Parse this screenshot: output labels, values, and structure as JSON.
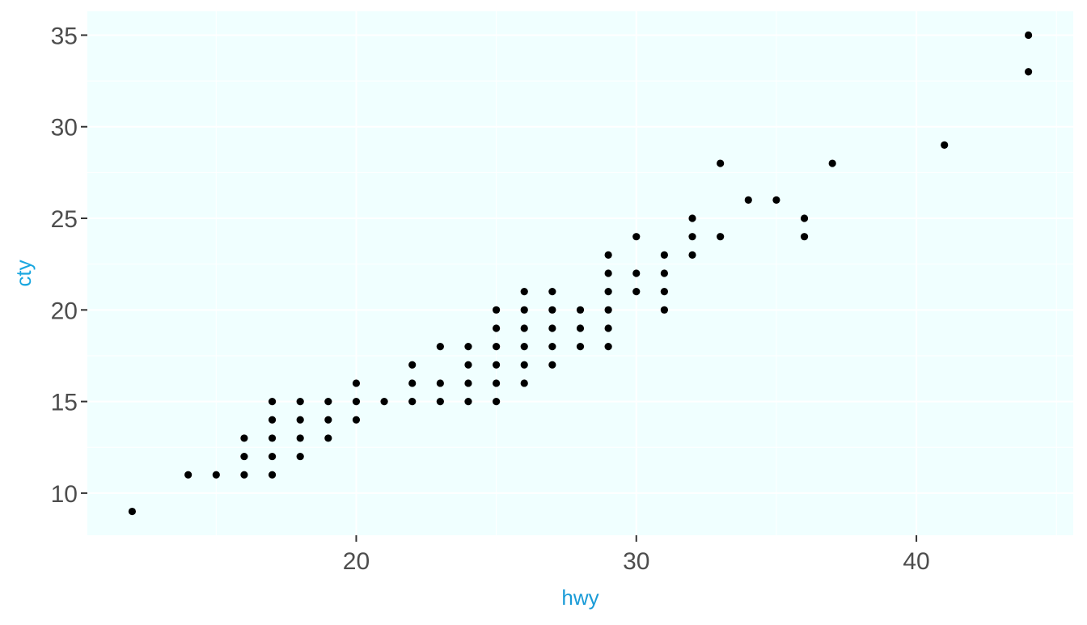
{
  "chart_data": {
    "type": "scatter",
    "title": "",
    "xlabel": "hwy",
    "ylabel": "cty",
    "xlim": [
      10.4,
      45.6
    ],
    "ylim": [
      7.7,
      36.3
    ],
    "x_ticks": [
      20,
      30,
      40
    ],
    "y_ticks": [
      10,
      15,
      20,
      25,
      30,
      35
    ],
    "x_tick_labels": [
      "20",
      "30",
      "40"
    ],
    "y_tick_labels": [
      "10",
      "15",
      "20",
      "25",
      "30",
      "35"
    ],
    "grid": true,
    "legend": "none",
    "colors": {
      "panel_background": "#f0ffff",
      "grid": "#ffffff",
      "point": "#000000",
      "tick_text": "#4d4d4d",
      "xlabel": "#1a9bd7",
      "ylabel": "#1aa7e0"
    },
    "points": [
      {
        "x": 12,
        "y": 9
      },
      {
        "x": 14,
        "y": 11
      },
      {
        "x": 15,
        "y": 11
      },
      {
        "x": 16,
        "y": 11
      },
      {
        "x": 16,
        "y": 12
      },
      {
        "x": 16,
        "y": 13
      },
      {
        "x": 17,
        "y": 11
      },
      {
        "x": 17,
        "y": 12
      },
      {
        "x": 17,
        "y": 13
      },
      {
        "x": 17,
        "y": 14
      },
      {
        "x": 17,
        "y": 15
      },
      {
        "x": 18,
        "y": 12
      },
      {
        "x": 18,
        "y": 13
      },
      {
        "x": 18,
        "y": 14
      },
      {
        "x": 18,
        "y": 15
      },
      {
        "x": 19,
        "y": 13
      },
      {
        "x": 19,
        "y": 14
      },
      {
        "x": 19,
        "y": 15
      },
      {
        "x": 20,
        "y": 14
      },
      {
        "x": 20,
        "y": 15
      },
      {
        "x": 20,
        "y": 16
      },
      {
        "x": 21,
        "y": 15
      },
      {
        "x": 22,
        "y": 15
      },
      {
        "x": 22,
        "y": 16
      },
      {
        "x": 22,
        "y": 17
      },
      {
        "x": 23,
        "y": 15
      },
      {
        "x": 23,
        "y": 16
      },
      {
        "x": 23,
        "y": 18
      },
      {
        "x": 24,
        "y": 15
      },
      {
        "x": 24,
        "y": 16
      },
      {
        "x": 24,
        "y": 17
      },
      {
        "x": 24,
        "y": 18
      },
      {
        "x": 25,
        "y": 15
      },
      {
        "x": 25,
        "y": 16
      },
      {
        "x": 25,
        "y": 17
      },
      {
        "x": 25,
        "y": 18
      },
      {
        "x": 25,
        "y": 19
      },
      {
        "x": 25,
        "y": 20
      },
      {
        "x": 26,
        "y": 16
      },
      {
        "x": 26,
        "y": 17
      },
      {
        "x": 26,
        "y": 18
      },
      {
        "x": 26,
        "y": 19
      },
      {
        "x": 26,
        "y": 20
      },
      {
        "x": 26,
        "y": 21
      },
      {
        "x": 27,
        "y": 17
      },
      {
        "x": 27,
        "y": 18
      },
      {
        "x": 27,
        "y": 19
      },
      {
        "x": 27,
        "y": 20
      },
      {
        "x": 27,
        "y": 21
      },
      {
        "x": 28,
        "y": 18
      },
      {
        "x": 28,
        "y": 19
      },
      {
        "x": 28,
        "y": 20
      },
      {
        "x": 29,
        "y": 18
      },
      {
        "x": 29,
        "y": 19
      },
      {
        "x": 29,
        "y": 20
      },
      {
        "x": 29,
        "y": 21
      },
      {
        "x": 29,
        "y": 22
      },
      {
        "x": 29,
        "y": 23
      },
      {
        "x": 30,
        "y": 21
      },
      {
        "x": 30,
        "y": 22
      },
      {
        "x": 30,
        "y": 24
      },
      {
        "x": 31,
        "y": 20
      },
      {
        "x": 31,
        "y": 21
      },
      {
        "x": 31,
        "y": 22
      },
      {
        "x": 31,
        "y": 23
      },
      {
        "x": 32,
        "y": 23
      },
      {
        "x": 32,
        "y": 24
      },
      {
        "x": 32,
        "y": 25
      },
      {
        "x": 33,
        "y": 24
      },
      {
        "x": 33,
        "y": 28
      },
      {
        "x": 34,
        "y": 26
      },
      {
        "x": 35,
        "y": 26
      },
      {
        "x": 36,
        "y": 24
      },
      {
        "x": 36,
        "y": 25
      },
      {
        "x": 37,
        "y": 28
      },
      {
        "x": 41,
        "y": 29
      },
      {
        "x": 44,
        "y": 33
      },
      {
        "x": 44,
        "y": 35
      }
    ]
  }
}
